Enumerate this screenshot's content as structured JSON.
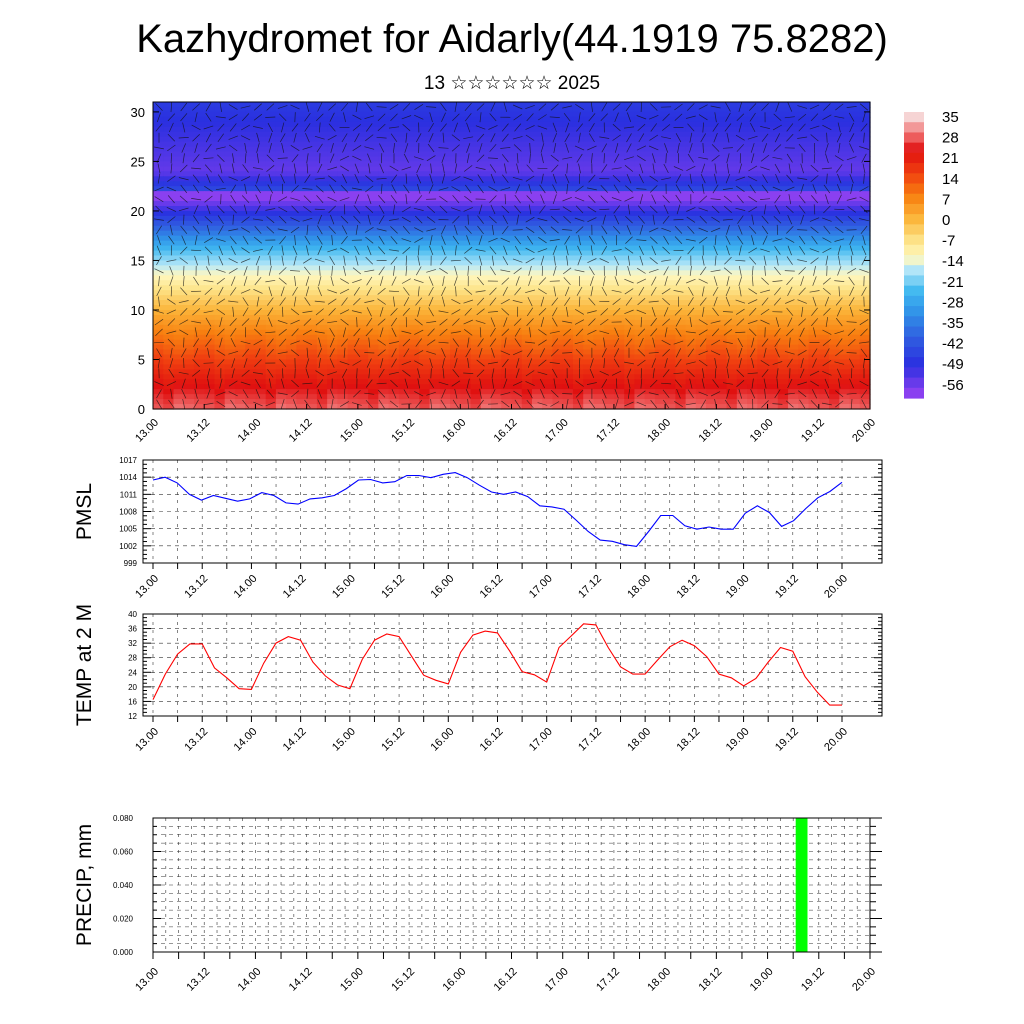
{
  "header": {
    "title": "Kazhydromet for Aidarly(44.1919 75.8282)",
    "subtitle": "13 ☆☆☆☆☆☆ 2025"
  },
  "chart_data": [
    {
      "type": "heatmap",
      "name": "temperature-cross-section",
      "y_ticks": [
        0,
        5,
        10,
        15,
        20,
        25,
        30
      ],
      "y_range": [
        0,
        31
      ],
      "x_range": [
        0,
        14
      ],
      "x_tick_labels": [
        "13.00",
        "13.12",
        "14.00",
        "14.12",
        "15.00",
        "15.12",
        "16.00",
        "16.12",
        "17.00",
        "17.12",
        "18.00",
        "18.12",
        "19.00",
        "19.12",
        "20.00"
      ],
      "colorbar_labels": [
        "35",
        "28",
        "21",
        "14",
        "7",
        "0",
        "-7",
        "-14",
        "-21",
        "-28",
        "-35",
        "-42",
        "-49",
        "-56"
      ],
      "color_stops": [
        {
          "value": 38,
          "color": "#f6d4d4"
        },
        {
          "value": 32,
          "color": "#f07070"
        },
        {
          "value": 26,
          "color": "#e01010"
        },
        {
          "value": 18,
          "color": "#f04010"
        },
        {
          "value": 10,
          "color": "#f88010"
        },
        {
          "value": 2,
          "color": "#fbb53a"
        },
        {
          "value": -6,
          "color": "#fde48a"
        },
        {
          "value": -12,
          "color": "#fff8c0"
        },
        {
          "value": -16,
          "color": "#b8e8f8"
        },
        {
          "value": -24,
          "color": "#40b8f0"
        },
        {
          "value": -32,
          "color": "#3090e8"
        },
        {
          "value": -40,
          "color": "#3060e0"
        },
        {
          "value": -50,
          "color": "#2a30e0"
        },
        {
          "value": -60,
          "color": "#8a40f0"
        }
      ]
    },
    {
      "type": "line",
      "name": "pmsl",
      "ylabel": "PMSL",
      "ylim": [
        999,
        1017
      ],
      "y_ticks": [
        999,
        1002,
        1005,
        1008,
        1011,
        1014,
        1017
      ],
      "x_tick_labels": [
        "13.00",
        "13.12",
        "14.00",
        "14.12",
        "15.00",
        "15.12",
        "16.00",
        "16.12",
        "17.00",
        "17.12",
        "18.00",
        "18.12",
        "19.00",
        "19.12",
        "20.00"
      ],
      "color": "#0000ff",
      "values": [
        1013.5,
        1014,
        1013,
        1011,
        1010,
        1010.8,
        1010.3,
        1009.8,
        1010.2,
        1011.3,
        1010.8,
        1009.5,
        1009.3,
        1010.2,
        1010.4,
        1010.8,
        1012,
        1013.5,
        1013.6,
        1013,
        1013.2,
        1014.3,
        1014.3,
        1013.9,
        1014.5,
        1014.8,
        1013.9,
        1012.6,
        1011.4,
        1011,
        1011.4,
        1010.6,
        1009,
        1008.8,
        1008.4,
        1006.5,
        1004.5,
        1003,
        1002.8,
        1002.2,
        1001.9,
        1004.5,
        1007.3,
        1007.3,
        1005.5,
        1004.9,
        1005.3,
        1004.9,
        1004.9,
        1007.7,
        1009,
        1007.8,
        1005.4,
        1006.4,
        1008.5,
        1010.4,
        1011.5,
        1013.1
      ]
    },
    {
      "type": "line",
      "name": "temp-2m",
      "ylabel": "TEMP at 2 M",
      "ylim": [
        12,
        40
      ],
      "y_ticks": [
        12,
        16,
        20,
        24,
        28,
        32,
        36,
        40
      ],
      "x_tick_labels": [
        "13.00",
        "13.12",
        "14.00",
        "14.12",
        "15.00",
        "15.12",
        "16.00",
        "16.12",
        "17.00",
        "17.12",
        "18.00",
        "18.12",
        "19.00",
        "19.12",
        "20.00"
      ],
      "color": "#ff0000",
      "values": [
        16.5,
        23.5,
        29,
        31.8,
        31.8,
        25.2,
        22.5,
        19.5,
        19.3,
        26.5,
        32,
        33.8,
        32.8,
        26.8,
        23,
        20.5,
        19.5,
        27.5,
        32.8,
        34.5,
        33.8,
        28.5,
        23.2,
        21.8,
        20.8,
        29.5,
        34.2,
        35.3,
        34.8,
        29.8,
        24.2,
        23.3,
        21.3,
        30.8,
        34,
        37.3,
        37,
        30.8,
        25.5,
        23.5,
        23.5,
        27.3,
        31,
        32.8,
        31.3,
        28.3,
        23.5,
        22.5,
        20.3,
        22.3,
        26.8,
        30.8,
        29.8,
        22.8,
        18.5,
        15,
        15
      ]
    },
    {
      "type": "bar",
      "name": "precip",
      "ylabel": "PRECIP, mm",
      "ylim": [
        0,
        0.08
      ],
      "y_ticks": [
        "0.000",
        "0.020",
        "0.040",
        "0.060",
        "0.080"
      ],
      "x_tick_labels": [
        "13.00",
        "13.12",
        "14.00",
        "14.12",
        "15.00",
        "15.12",
        "16.00",
        "16.12",
        "17.00",
        "17.12",
        "18.00",
        "18.12",
        "19.00",
        "19.12",
        "20.00"
      ],
      "x_range": [
        0,
        14
      ],
      "color": "#00ff00",
      "bars": [
        {
          "x_start": 12.55,
          "x_end": 12.78,
          "value": 0.08
        }
      ]
    }
  ]
}
